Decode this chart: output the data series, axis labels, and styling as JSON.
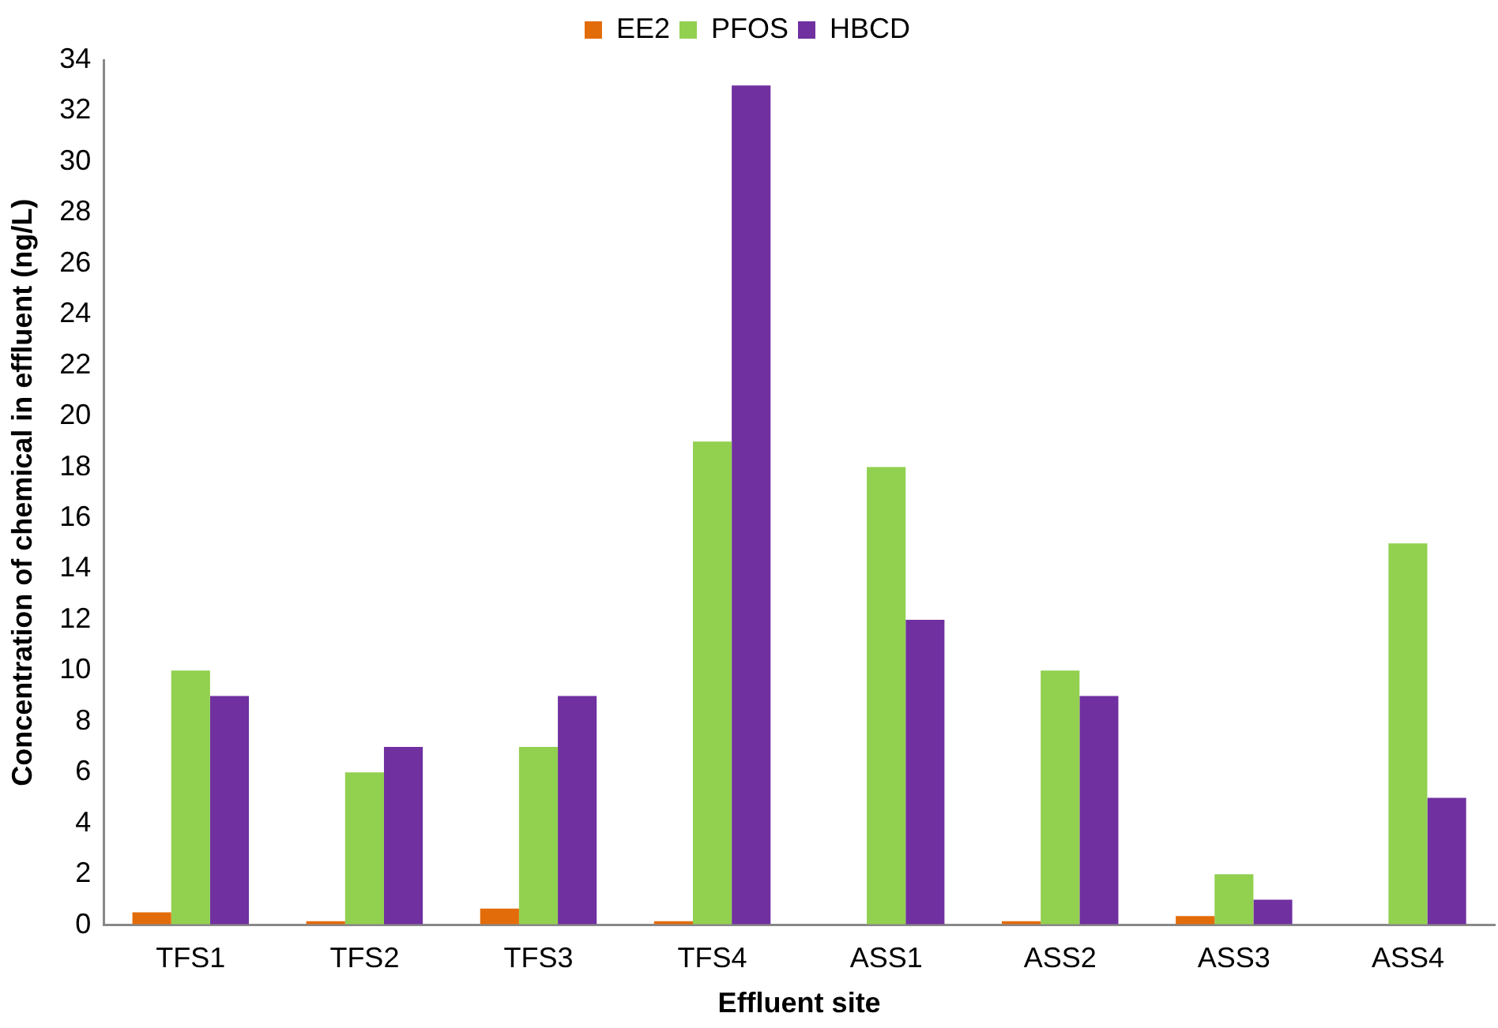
{
  "chart_data": {
    "type": "bar",
    "xlabel": "Effluent site",
    "ylabel": "Concentration of chemical in effluent (ng/L)",
    "categories": [
      "TFS1",
      "TFS2",
      "TFS3",
      "TFS4",
      "ASS1",
      "ASS2",
      "ASS3",
      "ASS4"
    ],
    "series": [
      {
        "name": "EE2",
        "color": "#e36c0a",
        "values": [
          0.5,
          0.15,
          0.65,
          0.15,
          null,
          0.15,
          0.35,
          null
        ]
      },
      {
        "name": "PFOS",
        "color": "#92d050",
        "values": [
          10,
          6,
          7,
          19,
          18,
          10,
          2,
          15
        ]
      },
      {
        "name": "HBCD",
        "color": "#7030a0",
        "values": [
          9,
          7,
          9,
          33,
          12,
          9,
          1,
          5
        ]
      }
    ],
    "ylim": [
      0,
      34
    ],
    "yticks": [
      0,
      2,
      4,
      6,
      8,
      10,
      12,
      14,
      16,
      18,
      20,
      22,
      24,
      26,
      28,
      30,
      32,
      34
    ],
    "grid": false,
    "legend": "top"
  }
}
